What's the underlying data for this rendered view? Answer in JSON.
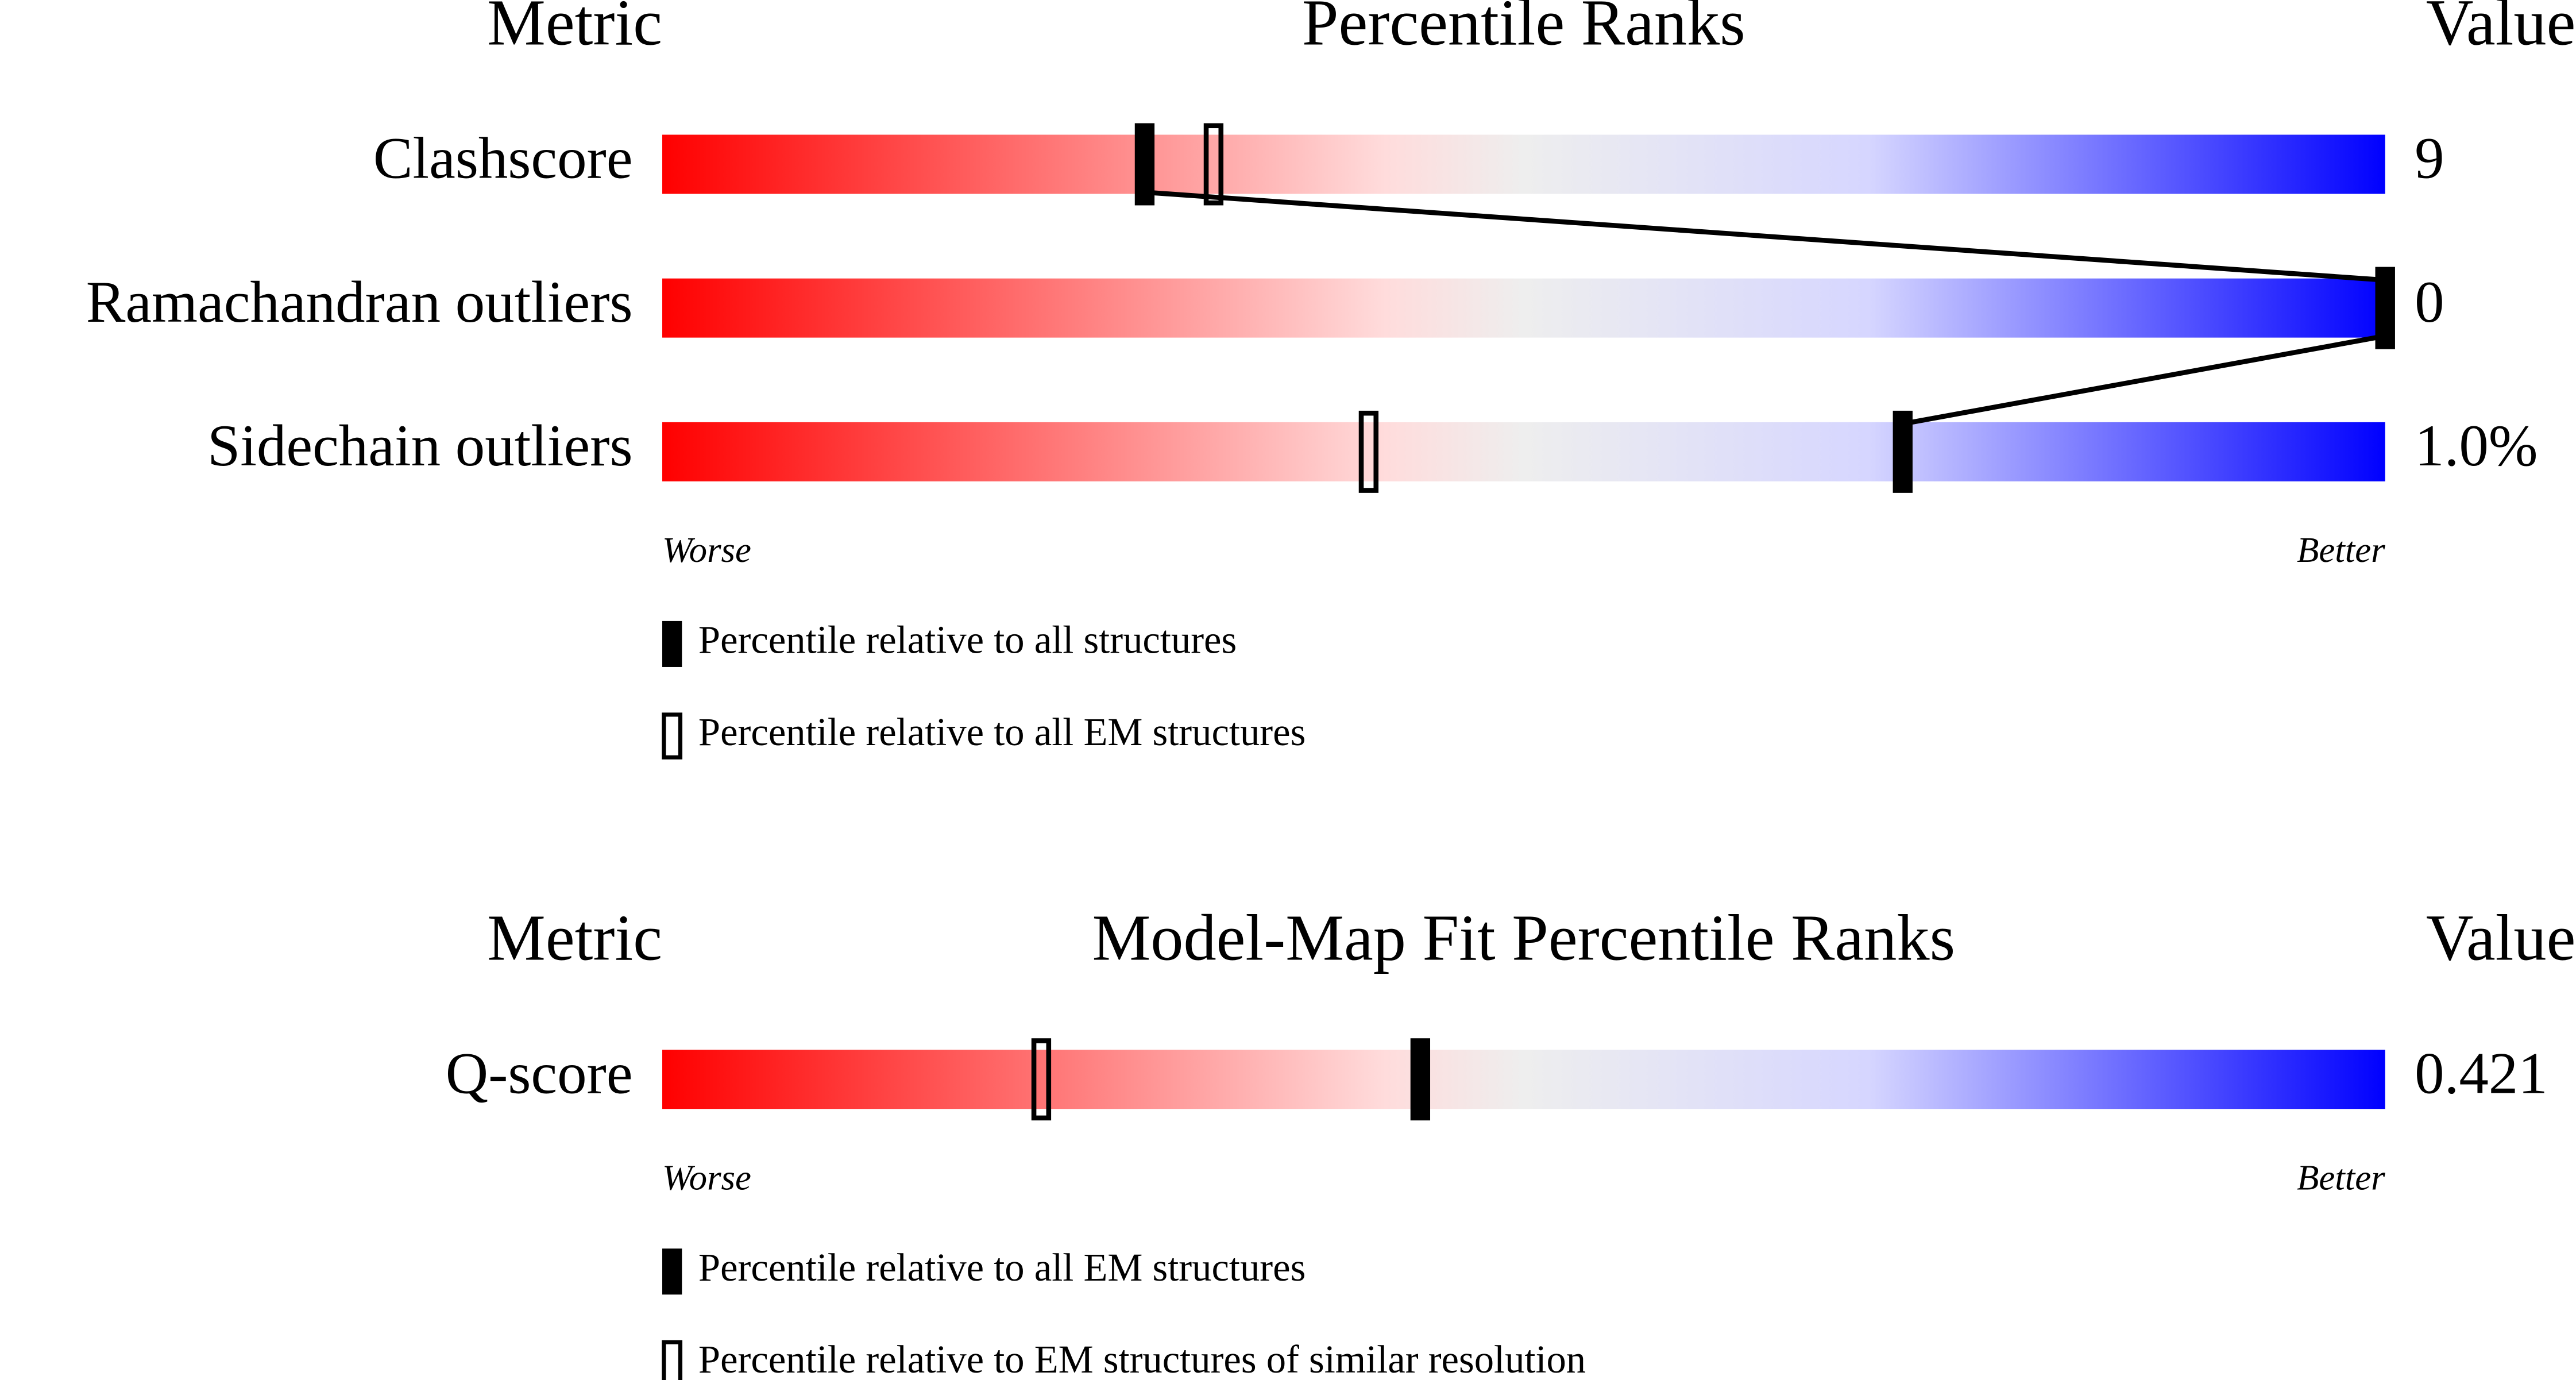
{
  "chart_data": [
    {
      "type": "slider",
      "header": {
        "metric": "Metric",
        "title": "Percentile Ranks",
        "value": "Value"
      },
      "categories": [
        "Clashscore",
        "Ramachandran outliers",
        "Sidechain outliers"
      ],
      "metric_values": [
        "9",
        "0",
        "1.0%"
      ],
      "xlim": [
        0,
        100
      ],
      "worse": "Worse",
      "better": "Better",
      "series": [
        {
          "name": "Percentile relative to all EM structures",
          "style": "open",
          "color": "#000000",
          "values": [
            32,
            100,
            41
          ]
        },
        {
          "name": "Percentile relative to all structures",
          "style": "filled",
          "color": "#000000",
          "values": [
            28,
            100,
            72
          ],
          "connect": true
        }
      ],
      "legend_order": [
        1,
        0
      ]
    },
    {
      "type": "slider",
      "header": {
        "metric": "Metric",
        "title": "Model-Map Fit Percentile Ranks",
        "value": "Value"
      },
      "categories": [
        "Q-score"
      ],
      "metric_values": [
        "0.421"
      ],
      "xlim": [
        0,
        100
      ],
      "worse": "Worse",
      "better": "Better",
      "series": [
        {
          "name": "Percentile relative to EM structures of similar resolution",
          "style": "open",
          "color": "#000000",
          "values": [
            22
          ]
        },
        {
          "name": "Percentile relative to all EM structures",
          "style": "filled",
          "color": "#000000",
          "values": [
            44
          ],
          "connect": false
        }
      ],
      "legend_order": [
        1,
        0
      ]
    }
  ]
}
